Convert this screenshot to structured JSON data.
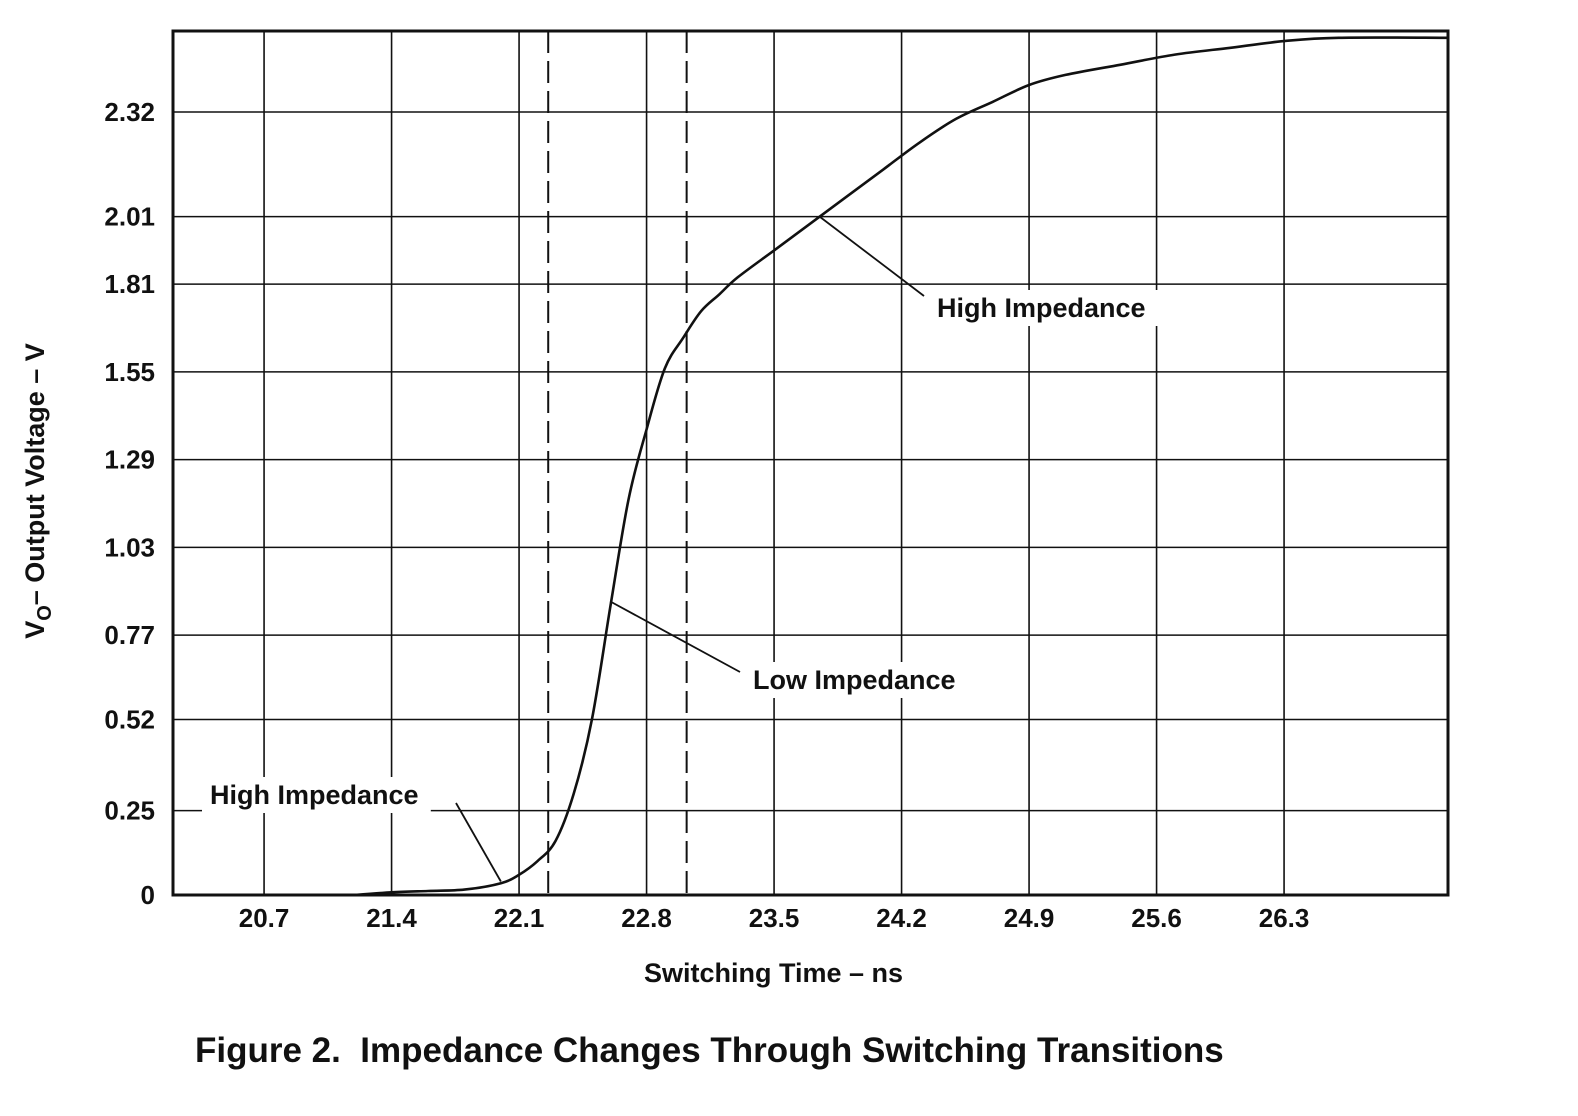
{
  "chart_data": {
    "type": "line",
    "title": "Figure 2.  Impedance Changes Through Switching Transitions",
    "xlabel": "Switching Time – ns",
    "ylabel_main": "V",
    "ylabel_sub": "O",
    "ylabel_rest": "– Output Voltage – V",
    "xlim": [
      20.2,
      27.2
    ],
    "ylim": [
      0,
      2.56
    ],
    "x_ticks": [
      {
        "value": 20.7,
        "label": "20.7"
      },
      {
        "value": 21.4,
        "label": "21.4"
      },
      {
        "value": 22.1,
        "label": "22.1"
      },
      {
        "value": 22.8,
        "label": "22.8"
      },
      {
        "value": 23.5,
        "label": "23.5"
      },
      {
        "value": 24.2,
        "label": "24.2"
      },
      {
        "value": 24.9,
        "label": "24.9"
      },
      {
        "value": 25.6,
        "label": "25.6"
      },
      {
        "value": 26.3,
        "label": "26.3"
      }
    ],
    "y_ticks": [
      {
        "value": 0,
        "label": "0"
      },
      {
        "value": 0.25,
        "label": "0.25"
      },
      {
        "value": 0.52,
        "label": "0.52"
      },
      {
        "value": 0.77,
        "label": "0.77"
      },
      {
        "value": 1.03,
        "label": "1.03"
      },
      {
        "value": 1.29,
        "label": "1.29"
      },
      {
        "value": 1.55,
        "label": "1.55"
      },
      {
        "value": 1.81,
        "label": "1.81"
      },
      {
        "value": 2.01,
        "label": "2.01"
      },
      {
        "value": 2.32,
        "label": "2.32"
      }
    ],
    "grid": true,
    "dashed_lines_x": [
      22.26,
      23.02
    ],
    "series": [
      {
        "name": "Output Voltage",
        "points": [
          [
            21.2,
            0.0
          ],
          [
            21.4,
            0.008
          ],
          [
            21.6,
            0.012
          ],
          [
            21.8,
            0.016
          ],
          [
            22.0,
            0.035
          ],
          [
            22.1,
            0.06
          ],
          [
            22.2,
            0.1
          ],
          [
            22.3,
            0.16
          ],
          [
            22.4,
            0.3
          ],
          [
            22.5,
            0.52
          ],
          [
            22.6,
            0.85
          ],
          [
            22.7,
            1.17
          ],
          [
            22.8,
            1.38
          ],
          [
            22.9,
            1.56
          ],
          [
            23.0,
            1.65
          ],
          [
            23.1,
            1.73
          ],
          [
            23.2,
            1.78
          ],
          [
            23.3,
            1.83
          ],
          [
            23.5,
            1.91
          ],
          [
            23.7,
            1.99
          ],
          [
            23.9,
            2.07
          ],
          [
            24.1,
            2.15
          ],
          [
            24.3,
            2.23
          ],
          [
            24.5,
            2.3
          ],
          [
            24.7,
            2.35
          ],
          [
            24.9,
            2.4
          ],
          [
            25.1,
            2.43
          ],
          [
            25.4,
            2.46
          ],
          [
            25.7,
            2.49
          ],
          [
            26.0,
            2.51
          ],
          [
            26.3,
            2.53
          ],
          [
            26.6,
            2.54
          ],
          [
            27.2,
            2.54
          ]
        ]
      }
    ],
    "annotations": [
      {
        "text": "High Impedance",
        "point": [
          23.75,
          2.01
        ]
      },
      {
        "text": "Low Impedance",
        "point": [
          22.6,
          0.87
        ]
      },
      {
        "text": "High Impedance",
        "point": [
          22.0,
          0.04
        ]
      }
    ]
  }
}
